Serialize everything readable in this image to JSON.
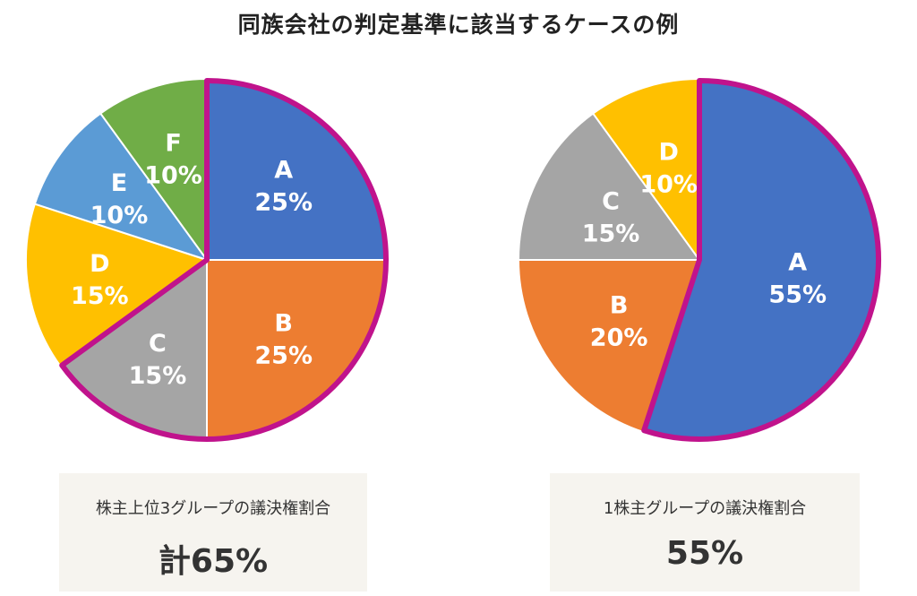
{
  "title": "同族会社の判定基準に該当するケースの例",
  "colors": {
    "A": "#4472c4",
    "B": "#ed7d31",
    "C": "#a5a5a5",
    "D": "#ffc000",
    "E": "#5b9bd5",
    "F": "#70ad47",
    "highlight": "#c0138c"
  },
  "chart_data": [
    {
      "type": "pie",
      "categories": [
        "A",
        "B",
        "C",
        "D",
        "E",
        "F"
      ],
      "values": [
        25,
        25,
        15,
        15,
        10,
        10
      ],
      "labels": [
        "A\n25%",
        "B\n25%",
        "C\n15%",
        "D\n15%",
        "E\n10%",
        "F\n10%"
      ],
      "highlighted": [
        "A",
        "B",
        "C"
      ],
      "start_angle_deg": 0,
      "direction": "clockwise",
      "caption": "株主上位3グループの議決権割合",
      "total": "計65%"
    },
    {
      "type": "pie",
      "categories": [
        "A",
        "B",
        "C",
        "D"
      ],
      "values": [
        55,
        20,
        15,
        10
      ],
      "labels": [
        "A\n55%",
        "B\n20%",
        "C\n15%",
        "D\n10%"
      ],
      "highlighted": [
        "A"
      ],
      "start_angle_deg": 0,
      "direction": "clockwise",
      "caption": "1株主グループの議決権割合",
      "total": "55%"
    }
  ]
}
